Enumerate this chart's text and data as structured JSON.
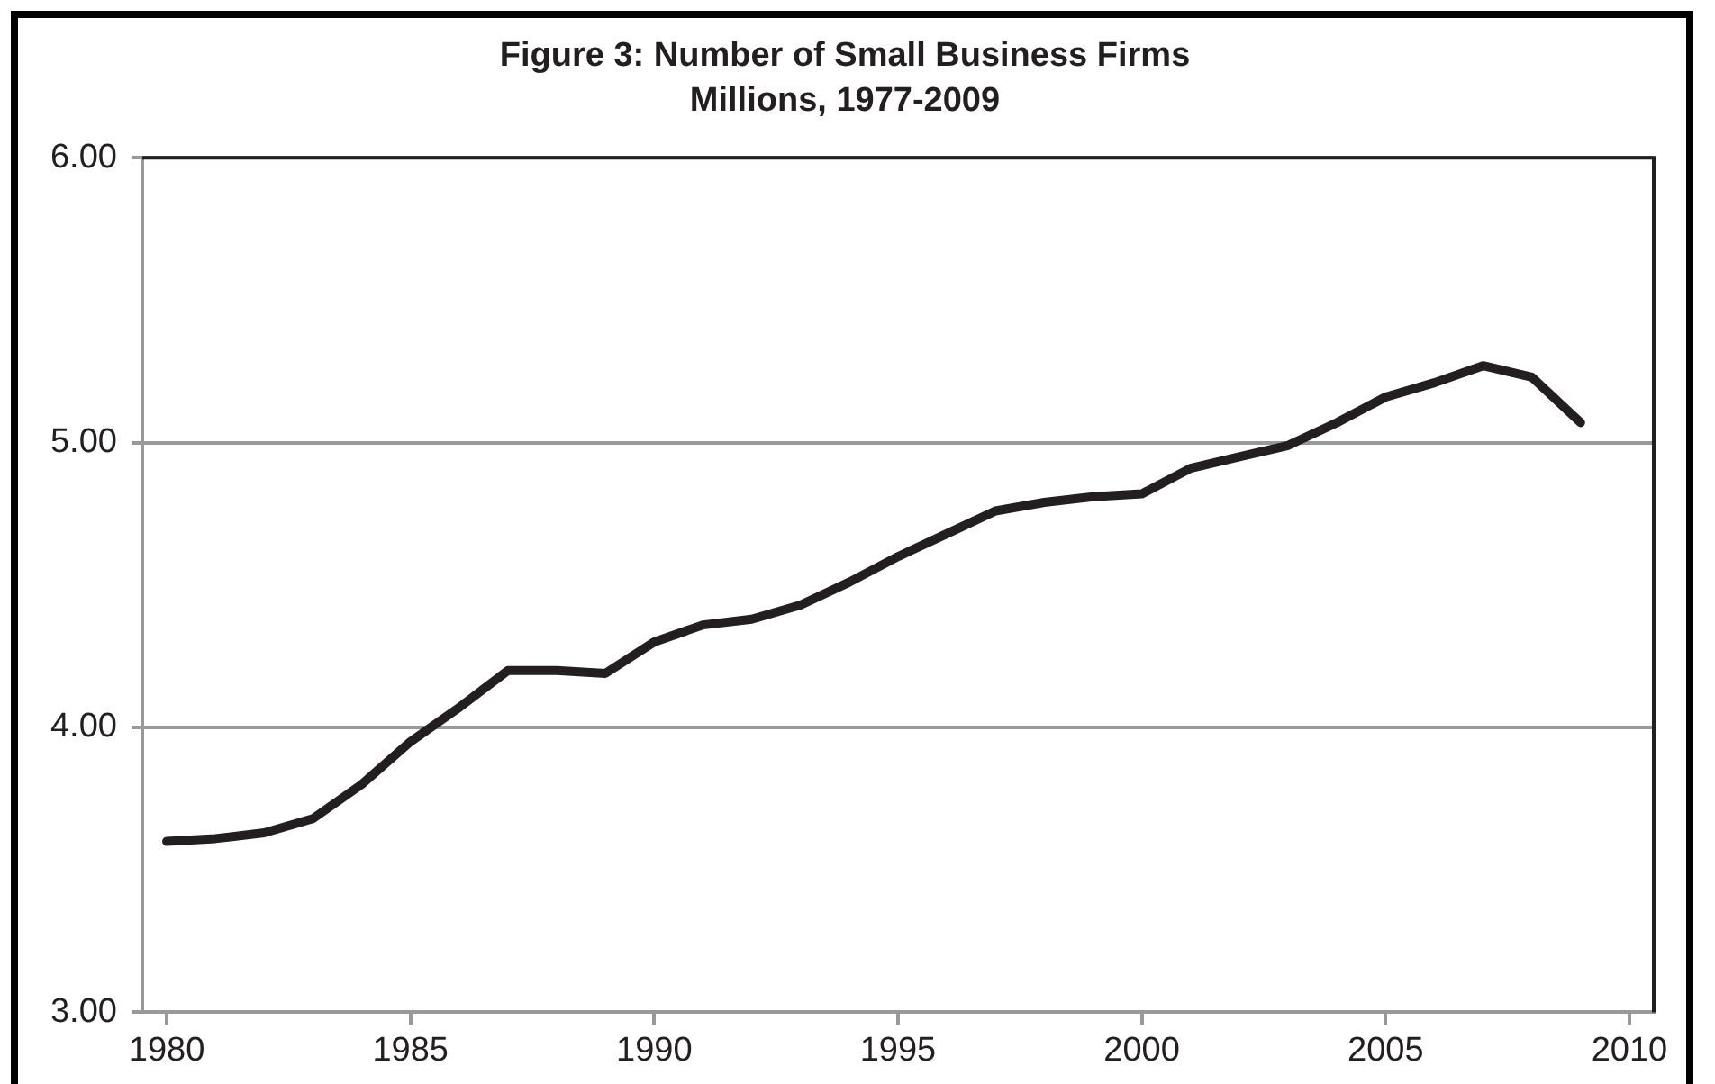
{
  "chart_data": {
    "type": "line",
    "title": "Figure 3: Number of Small Business Firms",
    "subtitle": "Millions, 1977-2009",
    "x": [
      1980,
      1981,
      1982,
      1983,
      1984,
      1985,
      1986,
      1987,
      1988,
      1989,
      1990,
      1991,
      1992,
      1993,
      1994,
      1995,
      1996,
      1997,
      1998,
      1999,
      2000,
      2001,
      2002,
      2003,
      2004,
      2005,
      2006,
      2007,
      2008,
      2009
    ],
    "series": [
      {
        "color": "#231f20",
        "values": [
          3.6,
          3.61,
          3.63,
          3.68,
          3.8,
          3.95,
          4.07,
          4.2,
          4.2,
          4.19,
          4.3,
          4.36,
          4.38,
          4.43,
          4.51,
          4.6,
          4.68,
          4.76,
          4.79,
          4.81,
          4.82,
          4.91,
          4.95,
          4.99,
          5.07,
          5.16,
          5.21,
          5.27,
          5.23,
          5.07
        ]
      }
    ],
    "xlim": [
      1979.5,
      2010.5
    ],
    "xticks": [
      1980,
      1985,
      1990,
      1995,
      2000,
      2005,
      2010
    ],
    "ylim": [
      3,
      6
    ],
    "yticks": [
      {
        "value": 3,
        "label": "3.00"
      },
      {
        "value": 4,
        "label": "4.00"
      },
      {
        "value": 5,
        "label": "5.00"
      },
      {
        "value": 6,
        "label": "6.00"
      }
    ],
    "grid": "y",
    "legend": false,
    "marker": "none",
    "line_style": "solid"
  }
}
